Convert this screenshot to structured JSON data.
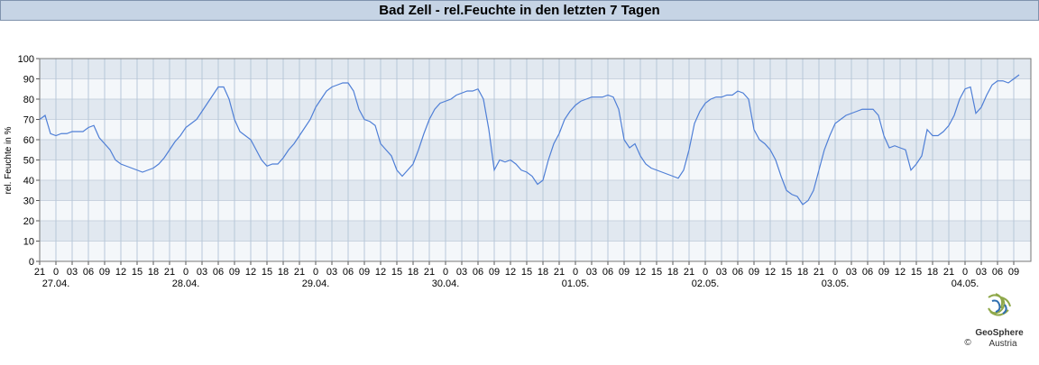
{
  "chart_data": {
    "type": "line",
    "title": "Bad Zell - rel.Feuchte in den letzten 7 Tagen",
    "y_label": "rel. Feuchte in %",
    "logo": {
      "name": "GeoSphere",
      "sub": "Austria",
      "copyright": "©"
    },
    "color": "#4f7fd6",
    "ylim": [
      0,
      100
    ],
    "yticks": [
      0,
      10,
      20,
      30,
      40,
      50,
      60,
      70,
      80,
      90,
      100
    ],
    "grid": true,
    "categories": [
      "21",
      null,
      null,
      "0",
      null,
      null,
      "03",
      null,
      null,
      "06",
      null,
      null,
      "09",
      null,
      null,
      "12",
      null,
      null,
      "15",
      null,
      null,
      "18",
      null,
      null,
      "21",
      null,
      null,
      "0",
      null,
      null,
      "03",
      null,
      null,
      "06",
      null,
      null,
      "09",
      null,
      null,
      "12",
      null,
      null,
      "15",
      null,
      null,
      "18",
      null,
      null,
      "21",
      null,
      null,
      "0",
      null,
      null,
      "03",
      null,
      null,
      "06",
      null,
      null,
      "09",
      null,
      null,
      "12",
      null,
      null,
      "15",
      null,
      null,
      "18",
      null,
      null,
      "21",
      null,
      null,
      "0",
      null,
      null,
      "03",
      null,
      null,
      "06",
      null,
      null,
      "09",
      null,
      null,
      "12",
      null,
      null,
      "15",
      null,
      null,
      "18",
      null,
      null,
      "21",
      null,
      null,
      "0",
      null,
      null,
      "03",
      null,
      null,
      "06",
      null,
      null,
      "09",
      null,
      null,
      "12",
      null,
      null,
      "15",
      null,
      null,
      "18",
      null,
      null,
      "21",
      null,
      null,
      "0",
      null,
      null,
      "03",
      null,
      null,
      "06",
      null,
      null,
      "09",
      null,
      null,
      "12",
      null,
      null,
      "15",
      null,
      null,
      "18",
      null,
      null,
      "21",
      null,
      null,
      "0",
      null,
      null,
      "03",
      null,
      null,
      "06",
      null,
      null,
      "09",
      null,
      null,
      "12",
      null,
      null,
      "15",
      null,
      null,
      "18",
      null,
      null,
      "21",
      null,
      null,
      "0",
      null,
      null,
      "03",
      null,
      null,
      "06",
      null,
      null,
      "09",
      null
    ],
    "day_labels": [
      null,
      null,
      null,
      "27.04.",
      null,
      null,
      null,
      null,
      null,
      null,
      null,
      null,
      null,
      null,
      null,
      null,
      null,
      null,
      null,
      null,
      null,
      null,
      null,
      null,
      null,
      null,
      null,
      "28.04.",
      null,
      null,
      null,
      null,
      null,
      null,
      null,
      null,
      null,
      null,
      null,
      null,
      null,
      null,
      null,
      null,
      null,
      null,
      null,
      null,
      null,
      null,
      null,
      "29.04.",
      null,
      null,
      null,
      null,
      null,
      null,
      null,
      null,
      null,
      null,
      null,
      null,
      null,
      null,
      null,
      null,
      null,
      null,
      null,
      null,
      null,
      null,
      null,
      "30.04.",
      null,
      null,
      null,
      null,
      null,
      null,
      null,
      null,
      null,
      null,
      null,
      null,
      null,
      null,
      null,
      null,
      null,
      null,
      null,
      null,
      null,
      null,
      null,
      "01.05.",
      null,
      null,
      null,
      null,
      null,
      null,
      null,
      null,
      null,
      null,
      null,
      null,
      null,
      null,
      null,
      null,
      null,
      null,
      null,
      null,
      null,
      null,
      null,
      "02.05.",
      null,
      null,
      null,
      null,
      null,
      null,
      null,
      null,
      null,
      null,
      null,
      null,
      null,
      null,
      null,
      null,
      null,
      null,
      null,
      null,
      null,
      null,
      null,
      "03.05.",
      null,
      null,
      null,
      null,
      null,
      null,
      null,
      null,
      null,
      null,
      null,
      null,
      null,
      null,
      null,
      null,
      null,
      null,
      null,
      null,
      null,
      null,
      null,
      "04.05.",
      null,
      null,
      null,
      null,
      null,
      null,
      null,
      null,
      null,
      null
    ],
    "values": [
      70,
      72,
      63,
      62,
      63,
      63,
      64,
      64,
      64,
      66,
      67,
      61,
      58,
      55,
      50,
      48,
      47,
      46,
      45,
      44,
      45,
      46,
      48,
      51,
      55,
      59,
      62,
      66,
      68,
      70,
      74,
      78,
      82,
      86,
      86,
      80,
      70,
      64,
      62,
      60,
      55,
      50,
      47,
      48,
      48,
      51,
      55,
      58,
      62,
      66,
      70,
      76,
      80,
      84,
      86,
      87,
      88,
      88,
      84,
      75,
      70,
      69,
      67,
      58,
      55,
      52,
      45,
      42,
      45,
      48,
      55,
      63,
      70,
      75,
      78,
      79,
      80,
      82,
      83,
      84,
      84,
      85,
      80,
      65,
      45,
      50,
      49,
      50,
      48,
      45,
      44,
      42,
      38,
      40,
      50,
      58,
      63,
      70,
      74,
      77,
      79,
      80,
      81,
      81,
      81,
      82,
      81,
      75,
      60,
      56,
      58,
      52,
      48,
      46,
      45,
      44,
      43,
      42,
      41,
      45,
      55,
      68,
      74,
      78,
      80,
      81,
      81,
      82,
      82,
      84,
      83,
      80,
      65,
      60,
      58,
      55,
      50,
      42,
      35,
      33,
      32,
      28,
      30,
      35,
      45,
      55,
      62,
      68,
      70,
      72,
      73,
      74,
      75,
      75,
      75,
      72,
      62,
      56,
      57,
      56,
      55,
      45,
      48,
      52,
      65,
      62,
      62,
      64,
      67,
      72,
      80,
      85,
      86,
      73,
      76,
      82,
      87,
      89,
      89,
      88,
      90,
      92
    ]
  }
}
